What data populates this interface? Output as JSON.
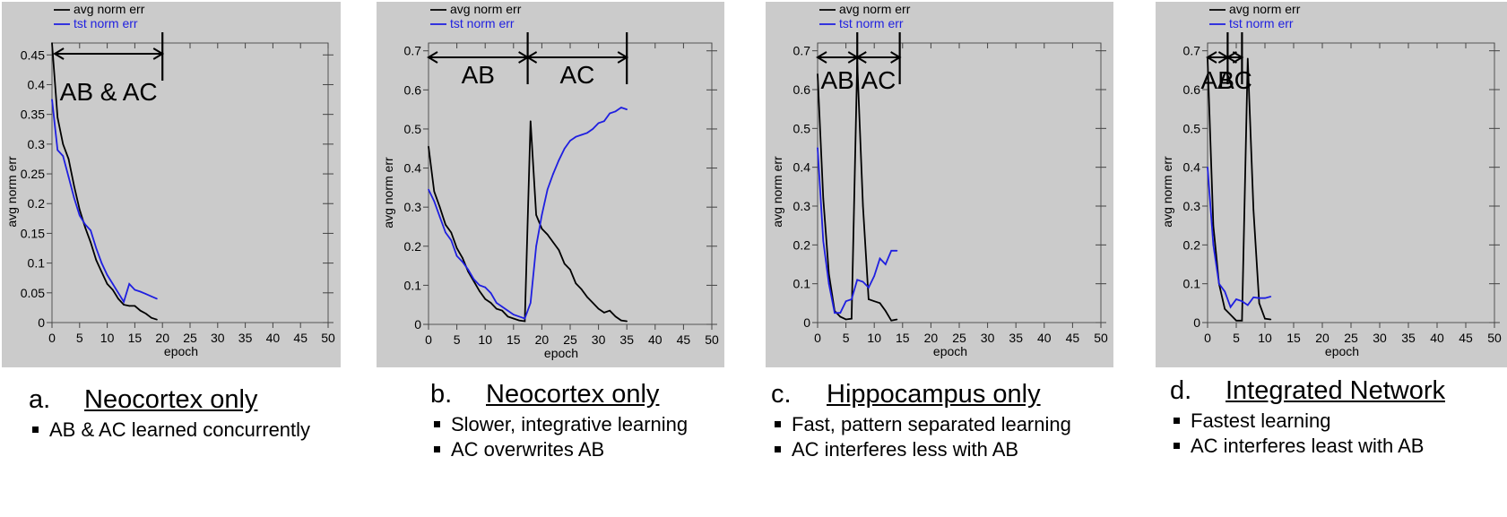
{
  "colors": {
    "panel_bg": "#cbcbcb",
    "series_avg": "#000000",
    "series_tst": "#1f1fe0"
  },
  "panels": [
    {
      "caption": {
        "letter": "a.",
        "title": "Neocortex only",
        "bullets": [
          "AB & AC learned concurrently"
        ]
      },
      "chart_data": {
        "type": "line",
        "xlabel": "epoch",
        "ylabel": "avg norm err",
        "xlim": [
          0,
          50
        ],
        "ylim": [
          0,
          0.47
        ],
        "xticks": [
          "0",
          "5",
          "10",
          "15",
          "20",
          "25",
          "30",
          "35",
          "40",
          "45",
          "50"
        ],
        "yticks": [
          "0",
          "0.05",
          "0.1",
          "0.15",
          "0.2",
          "0.25",
          "0.3",
          "0.35",
          "0.4",
          "0.45"
        ],
        "legend_location": "top-left",
        "series": [
          {
            "name": "avg norm err",
            "color": "#000000",
            "x": [
              0,
              1,
              2,
              3,
              4,
              5,
              6,
              7,
              8,
              9,
              10,
              11,
              12,
              13,
              14,
              15,
              16,
              17,
              18,
              19
            ],
            "y": [
              0.47,
              0.345,
              0.3,
              0.275,
              0.23,
              0.19,
              0.16,
              0.135,
              0.105,
              0.085,
              0.065,
              0.055,
              0.04,
              0.03,
              0.028,
              0.028,
              0.02,
              0.015,
              0.008,
              0.005
            ]
          },
          {
            "name": "tst norm err",
            "color": "#1f1fe0",
            "x": [
              0,
              1,
              2,
              3,
              4,
              5,
              6,
              7,
              8,
              9,
              10,
              11,
              12,
              13,
              14,
              15,
              16,
              17,
              18,
              19
            ],
            "y": [
              0.375,
              0.29,
              0.28,
              0.245,
              0.21,
              0.18,
              0.165,
              0.155,
              0.125,
              0.1,
              0.08,
              0.065,
              0.05,
              0.035,
              0.065,
              0.055,
              0.052,
              0.048,
              0.044,
              0.04
            ]
          }
        ],
        "annotations": [
          {
            "label": "AB & AC",
            "x_from": 0.5,
            "x_to": 20
          }
        ]
      }
    },
    {
      "caption": {
        "letter": "b.",
        "title": "Neocortex only",
        "bullets": [
          "Slower, integrative learning",
          "AC overwrites AB"
        ]
      },
      "chart_data": {
        "type": "line",
        "xlabel": "epoch",
        "ylabel": "avg norm err",
        "xlim": [
          0,
          50
        ],
        "ylim": [
          0,
          0.72
        ],
        "xticks": [
          "0",
          "5",
          "10",
          "15",
          "20",
          "25",
          "30",
          "35",
          "40",
          "45",
          "50"
        ],
        "yticks": [
          "0",
          "0.1",
          "0.2",
          "0.3",
          "0.4",
          "0.5",
          "0.6",
          "0.7"
        ],
        "legend_location": "top-left",
        "series": [
          {
            "name": "avg norm err",
            "color": "#000000",
            "x": [
              0,
              1,
              2,
              3,
              4,
              5,
              6,
              7,
              8,
              9,
              10,
              11,
              12,
              13,
              14,
              15,
              16,
              17,
              18,
              19,
              20,
              21,
              22,
              23,
              24,
              25,
              26,
              27,
              28,
              29,
              30,
              31,
              32,
              33,
              34,
              35
            ],
            "y": [
              0.455,
              0.34,
              0.3,
              0.255,
              0.235,
              0.195,
              0.17,
              0.135,
              0.11,
              0.085,
              0.065,
              0.055,
              0.04,
              0.035,
              0.02,
              0.015,
              0.01,
              0.008,
              0.52,
              0.28,
              0.245,
              0.23,
              0.21,
              0.19,
              0.155,
              0.14,
              0.105,
              0.09,
              0.07,
              0.055,
              0.04,
              0.03,
              0.035,
              0.02,
              0.01,
              0.008
            ]
          },
          {
            "name": "tst norm err",
            "color": "#1f1fe0",
            "x": [
              0,
              1,
              2,
              3,
              4,
              5,
              6,
              7,
              8,
              9,
              10,
              11,
              12,
              13,
              14,
              15,
              16,
              17,
              18,
              19,
              20,
              21,
              22,
              23,
              24,
              25,
              26,
              27,
              28,
              29,
              30,
              31,
              32,
              33,
              34,
              35
            ],
            "y": [
              0.345,
              0.315,
              0.275,
              0.235,
              0.215,
              0.175,
              0.16,
              0.14,
              0.115,
              0.1,
              0.095,
              0.08,
              0.055,
              0.045,
              0.035,
              0.025,
              0.02,
              0.015,
              0.055,
              0.2,
              0.28,
              0.345,
              0.385,
              0.42,
              0.45,
              0.47,
              0.48,
              0.485,
              0.49,
              0.5,
              0.515,
              0.52,
              0.54,
              0.545,
              0.555,
              0.55
            ]
          }
        ],
        "annotations": [
          {
            "label": "AB",
            "x_from": 0,
            "x_to": 17.5
          },
          {
            "label": "AC",
            "x_from": 17.5,
            "x_to": 35
          }
        ]
      }
    },
    {
      "caption": {
        "letter": "c.",
        "title": "Hippocampus only",
        "bullets": [
          "Fast, pattern separated learning",
          "AC interferes less with AB"
        ]
      },
      "chart_data": {
        "type": "line",
        "xlabel": "epoch",
        "ylabel": "avg norm err",
        "xlim": [
          0,
          50
        ],
        "ylim": [
          0,
          0.72
        ],
        "xticks": [
          "0",
          "5",
          "10",
          "15",
          "20",
          "25",
          "30",
          "35",
          "40",
          "45",
          "50"
        ],
        "yticks": [
          "0",
          "0.1",
          "0.2",
          "0.3",
          "0.4",
          "0.5",
          "0.6",
          "0.7"
        ],
        "legend_location": "top-left",
        "series": [
          {
            "name": "avg norm err",
            "color": "#000000",
            "x": [
              0,
              1,
              2,
              3,
              4,
              5,
              6,
              7,
              8,
              9,
              10,
              11,
              12,
              13,
              14
            ],
            "y": [
              0.64,
              0.32,
              0.125,
              0.03,
              0.015,
              0.008,
              0.01,
              0.67,
              0.3,
              0.06,
              0.055,
              0.05,
              0.03,
              0.005,
              0.008
            ]
          },
          {
            "name": "tst norm err",
            "color": "#1f1fe0",
            "x": [
              0,
              1,
              2,
              3,
              4,
              5,
              6,
              7,
              8,
              9,
              10,
              11,
              12,
              13,
              14
            ],
            "y": [
              0.45,
              0.21,
              0.1,
              0.025,
              0.025,
              0.055,
              0.06,
              0.11,
              0.105,
              0.09,
              0.12,
              0.165,
              0.15,
              0.185,
              0.185
            ]
          }
        ],
        "annotations": [
          {
            "label": "AB",
            "x_from": 0,
            "x_to": 7
          },
          {
            "label": "AC",
            "x_from": 7,
            "x_to": 14.5
          }
        ]
      }
    },
    {
      "caption": {
        "letter": "d.",
        "title": "Integrated Network",
        "bullets": [
          "Fastest learning",
          "AC interferes least with AB"
        ]
      },
      "chart_data": {
        "type": "line",
        "xlabel": "epoch",
        "ylabel": "avg norm err",
        "xlim": [
          0,
          50
        ],
        "ylim": [
          0,
          0.72
        ],
        "xticks": [
          "0",
          "5",
          "10",
          "15",
          "20",
          "25",
          "30",
          "35",
          "40",
          "45",
          "50"
        ],
        "yticks": [
          "0",
          "0.1",
          "0.2",
          "0.3",
          "0.4",
          "0.5",
          "0.6",
          "0.7"
        ],
        "legend_location": "top-left",
        "series": [
          {
            "name": "avg norm err",
            "color": "#000000",
            "x": [
              0,
              1,
              2,
              3,
              4,
              5,
              6,
              7,
              8,
              9,
              10,
              11
            ],
            "y": [
              0.68,
              0.25,
              0.1,
              0.035,
              0.02,
              0.005,
              0.005,
              0.68,
              0.29,
              0.05,
              0.01,
              0.008
            ]
          },
          {
            "name": "tst norm err",
            "color": "#1f1fe0",
            "x": [
              0,
              1,
              2,
              3,
              4,
              5,
              6,
              7,
              8,
              9,
              10,
              11
            ],
            "y": [
              0.4,
              0.2,
              0.1,
              0.08,
              0.04,
              0.06,
              0.055,
              0.045,
              0.065,
              0.063,
              0.063,
              0.067
            ]
          }
        ],
        "annotations": [
          {
            "label": "AB",
            "x_from": 0,
            "x_to": 3.5
          },
          {
            "label": "AC",
            "x_from": 3.5,
            "x_to": 6
          }
        ]
      }
    }
  ]
}
